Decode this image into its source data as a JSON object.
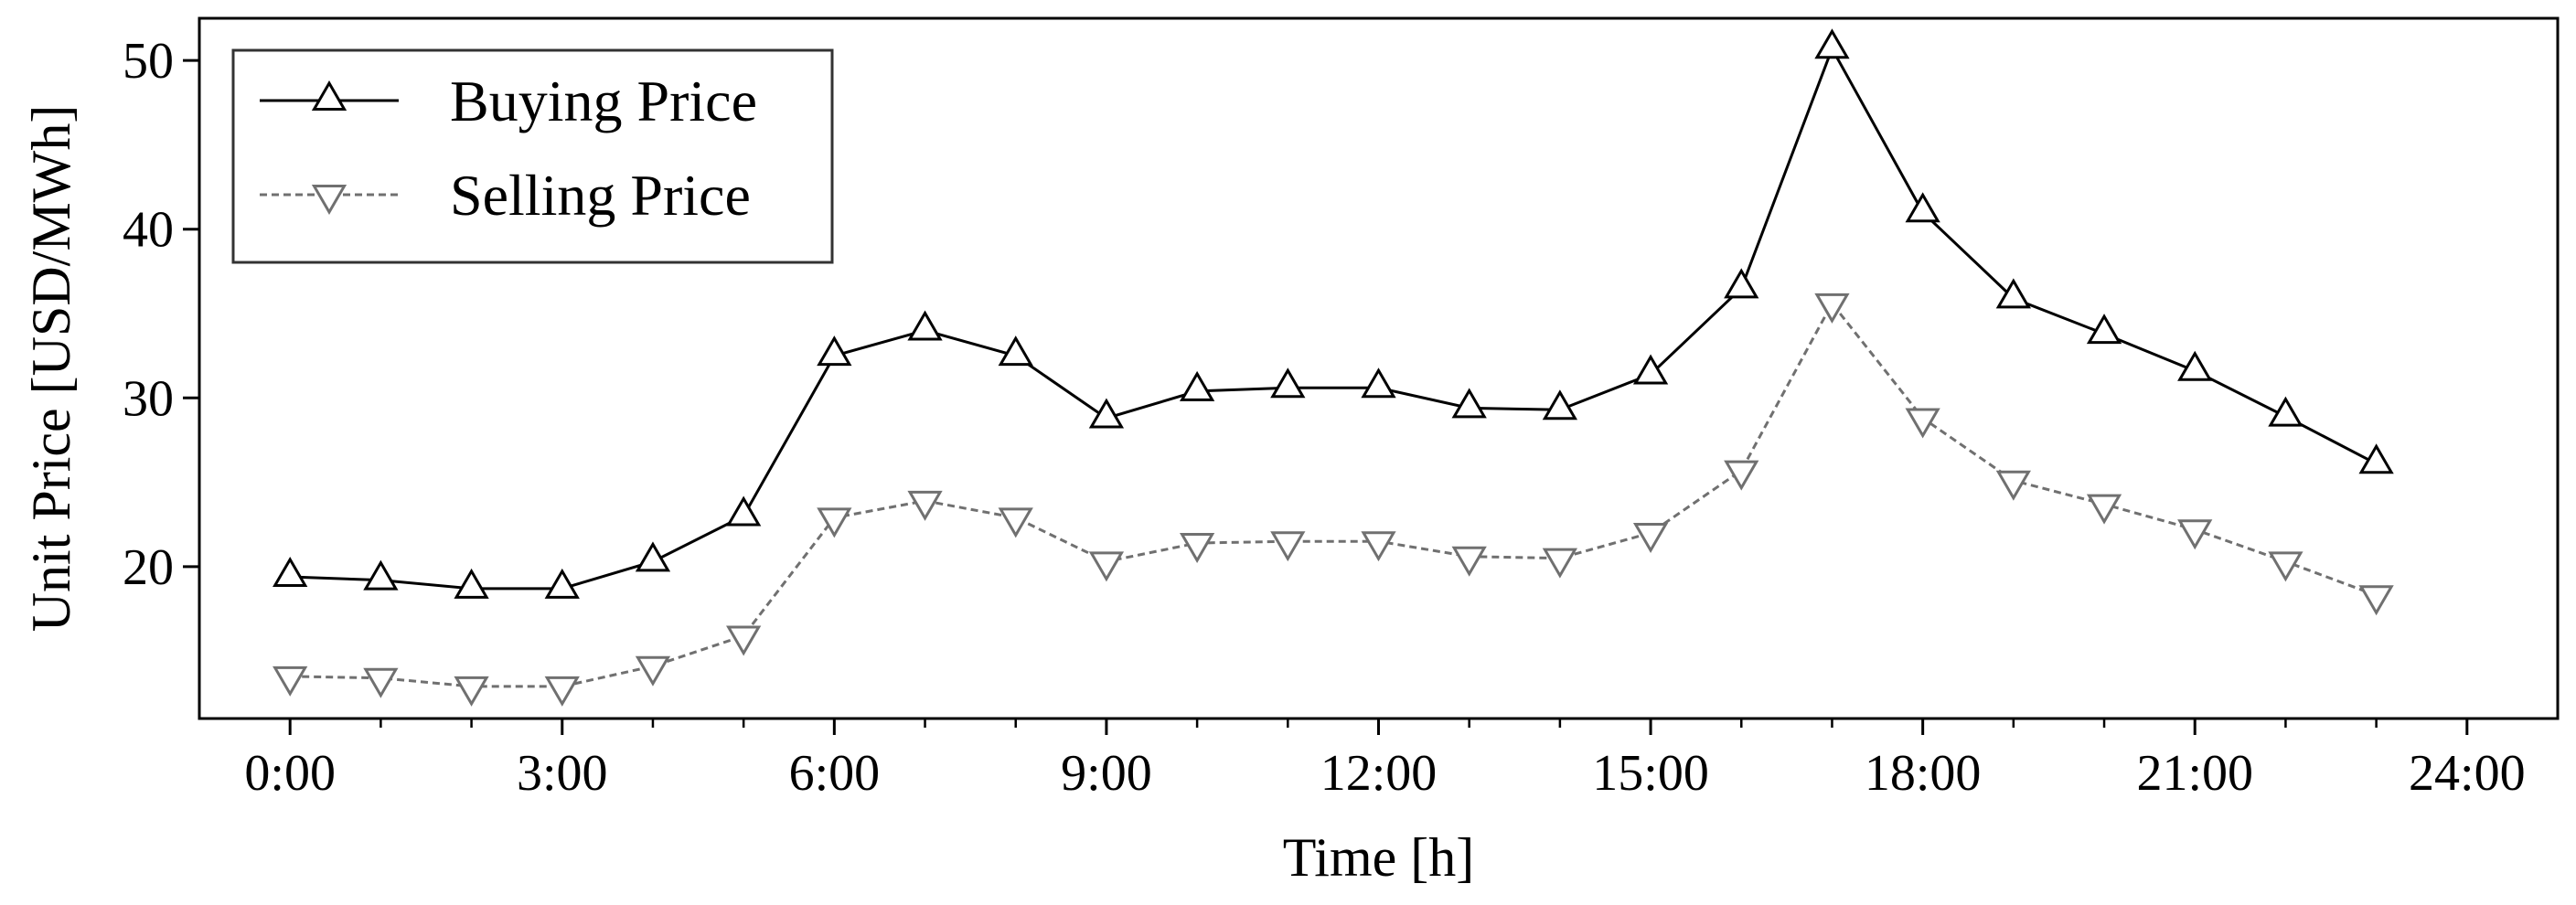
{
  "chart_data": {
    "type": "line",
    "title": "",
    "xlabel": "Time [h]",
    "ylabel": "Unit Price [USD/MWh]",
    "xlim": [
      -1,
      25
    ],
    "ylim": [
      11,
      52.5
    ],
    "x": [
      0,
      1,
      2,
      3,
      4,
      5,
      6,
      7,
      8,
      9,
      10,
      11,
      12,
      13,
      14,
      15,
      16,
      17,
      18,
      19,
      20,
      21,
      22,
      23
    ],
    "x_ticks": [
      0,
      3,
      6,
      9,
      12,
      15,
      18,
      21,
      24
    ],
    "x_tick_labels": [
      "0:00",
      "3:00",
      "6:00",
      "9:00",
      "12:00",
      "15:00",
      "18:00",
      "21:00",
      "24:00"
    ],
    "x_minor_ticks": [
      1,
      2,
      4,
      5,
      7,
      8,
      10,
      11,
      13,
      14,
      16,
      17,
      19,
      20,
      22,
      23
    ],
    "y_ticks": [
      20,
      30,
      40,
      50
    ],
    "y_tick_labels": [
      "20",
      "30",
      "40",
      "50"
    ],
    "grid": false,
    "legend_position": "top-left",
    "series": [
      {
        "name": "Buying Price",
        "color": "#000000",
        "line_style": "solid",
        "marker": "triangle-up",
        "values": [
          19.4,
          19.2,
          18.7,
          18.7,
          20.3,
          23.0,
          32.5,
          34.0,
          32.5,
          28.8,
          30.4,
          30.6,
          30.6,
          29.4,
          29.3,
          31.4,
          36.5,
          50.7,
          41.0,
          35.9,
          33.8,
          31.6,
          28.9,
          26.1
        ]
      },
      {
        "name": "Selling Price",
        "color": "#707070",
        "line_style": "dashed",
        "marker": "triangle-down",
        "values": [
          13.5,
          13.4,
          12.9,
          12.9,
          14.1,
          15.9,
          22.9,
          23.9,
          22.9,
          20.3,
          21.4,
          21.5,
          21.5,
          20.6,
          20.5,
          22.0,
          25.7,
          35.6,
          28.8,
          25.1,
          23.7,
          22.2,
          20.3,
          18.3
        ]
      }
    ]
  }
}
